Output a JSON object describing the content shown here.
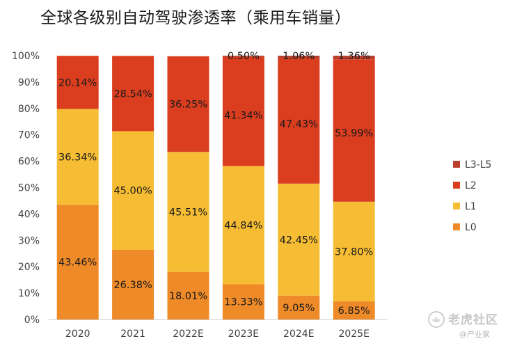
{
  "chart_data": {
    "type": "bar",
    "stacked": true,
    "title": "全球各级别自动驾驶渗透率（乘用车销量）",
    "xlabel": "",
    "ylabel": "",
    "ylim": [
      0,
      100
    ],
    "yticks": [
      "0%",
      "10%",
      "20%",
      "30%",
      "40%",
      "50%",
      "60%",
      "70%",
      "80%",
      "90%",
      "100%"
    ],
    "categories": [
      "2020",
      "2021",
      "2022E",
      "2023E",
      "2024E",
      "2025E"
    ],
    "series": [
      {
        "name": "L0",
        "color": "#ef8a28",
        "values": [
          43.46,
          26.38,
          18.01,
          13.33,
          9.05,
          6.85
        ],
        "labels": [
          "43.46%",
          "26.38%",
          "18.01%",
          "13.33%",
          "9.05%",
          "6.85%"
        ]
      },
      {
        "name": "L1",
        "color": "#f6bd34",
        "values": [
          36.34,
          45.0,
          45.51,
          44.84,
          42.45,
          37.8
        ],
        "labels": [
          "36.34%",
          "45.00%",
          "45.51%",
          "44.84%",
          "42.45%",
          "37.80%"
        ]
      },
      {
        "name": "L2",
        "color": "#db3d1f",
        "values": [
          20.14,
          28.54,
          36.25,
          41.34,
          47.43,
          53.99
        ],
        "labels": [
          "20.14%",
          "28.54%",
          "36.25%",
          "41.34%",
          "47.43%",
          "53.99%"
        ]
      },
      {
        "name": "L3-L5",
        "color": "#b8402d",
        "values": [
          0,
          0,
          0,
          0.5,
          1.06,
          1.36
        ],
        "labels": [
          "",
          "",
          "",
          "0.50%",
          "1.06%",
          "1.36%"
        ]
      }
    ],
    "legend": {
      "position": "right",
      "order": [
        "L3-L5",
        "L2",
        "L1",
        "L0"
      ]
    },
    "grid": false
  },
  "watermark": {
    "brand": "老虎社区",
    "sub": "@产业家",
    "icon": "tiger-logo-icon"
  }
}
